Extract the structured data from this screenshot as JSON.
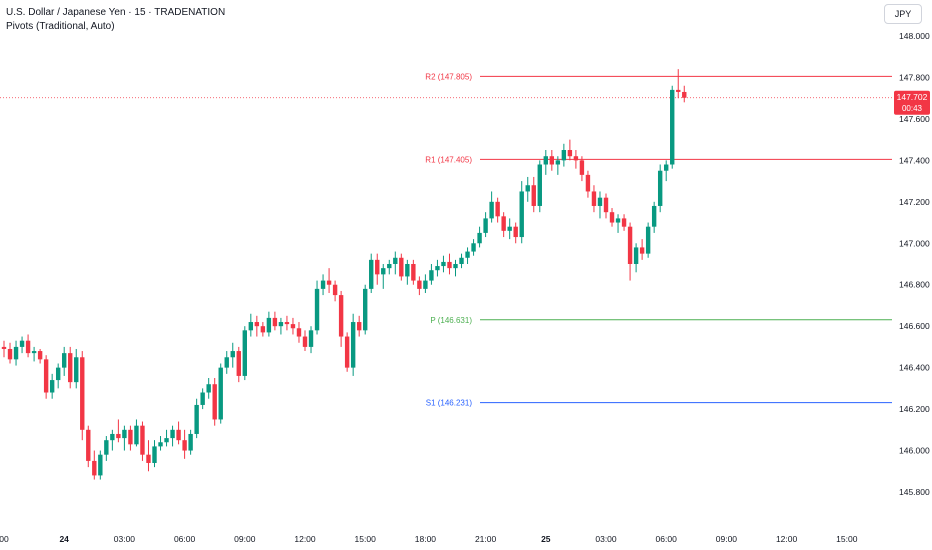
{
  "header": {
    "symbol_line": "U.S. Dollar / Japanese Yen · 15 · TRADENATION",
    "indicator_line": "Pivots (Traditional, Auto)",
    "currency_button": "JPY"
  },
  "price_badge": {
    "price": "147.702",
    "countdown": "00:43",
    "color": "#f23645"
  },
  "colors": {
    "up": "#089981",
    "down": "#f23645",
    "resistance": "#f23645",
    "pivot": "#4caf50",
    "support": "#2962ff"
  },
  "chart_data": {
    "type": "candlestick",
    "title": "U.S. Dollar / Japanese Yen · 15 · TRADENATION",
    "y_axis": {
      "min": 145.7,
      "max": 148.15,
      "ticks": [
        "148.000",
        "147.800",
        "147.600",
        "147.400",
        "147.200",
        "147.000",
        "146.800",
        "146.600",
        "146.400",
        "146.200",
        "146.000",
        "145.800"
      ]
    },
    "x_axis": {
      "ticks": [
        {
          "label": "00",
          "bold": false,
          "index": 0
        },
        {
          "label": "24",
          "bold": true,
          "index": 10
        },
        {
          "label": "03:00",
          "bold": false,
          "index": 20
        },
        {
          "label": "06:00",
          "bold": false,
          "index": 30
        },
        {
          "label": "09:00",
          "bold": false,
          "index": 40
        },
        {
          "label": "12:00",
          "bold": false,
          "index": 50
        },
        {
          "label": "15:00",
          "bold": false,
          "index": 60
        },
        {
          "label": "18:00",
          "bold": false,
          "index": 70
        },
        {
          "label": "21:00",
          "bold": false,
          "index": 80
        },
        {
          "label": "25",
          "bold": true,
          "index": 90
        },
        {
          "label": "03:00",
          "bold": false,
          "index": 100
        },
        {
          "label": "06:00",
          "bold": false,
          "index": 110
        },
        {
          "label": "09:00",
          "bold": false,
          "index": 120
        },
        {
          "label": "12:00",
          "bold": false,
          "index": 130
        },
        {
          "label": "15:00",
          "bold": false,
          "index": 140
        }
      ]
    },
    "pivot_levels": [
      {
        "label": "R2 (147.805)",
        "value": 147.805,
        "kind": "resistance"
      },
      {
        "label": "R1 (147.405)",
        "value": 147.405,
        "kind": "resistance"
      },
      {
        "label": "P (146.631)",
        "value": 146.631,
        "kind": "pivot"
      },
      {
        "label": "S1 (146.231)",
        "value": 146.231,
        "kind": "support"
      }
    ],
    "current_price": 147.702,
    "ohlc": [
      [
        146.5,
        146.53,
        146.45,
        146.49
      ],
      [
        146.49,
        146.52,
        146.42,
        146.44
      ],
      [
        146.44,
        146.53,
        146.41,
        146.5
      ],
      [
        146.5,
        146.55,
        146.47,
        146.53
      ],
      [
        146.53,
        146.56,
        146.45,
        146.47
      ],
      [
        146.47,
        146.5,
        146.43,
        146.48
      ],
      [
        146.48,
        146.49,
        146.42,
        146.44
      ],
      [
        146.44,
        146.46,
        146.25,
        146.28
      ],
      [
        146.28,
        146.37,
        146.25,
        146.34
      ],
      [
        146.34,
        146.42,
        146.3,
        146.4
      ],
      [
        146.4,
        146.5,
        146.36,
        146.47
      ],
      [
        146.47,
        146.5,
        146.3,
        146.33
      ],
      [
        146.33,
        146.49,
        146.3,
        146.45
      ],
      [
        146.45,
        146.48,
        146.05,
        146.1
      ],
      [
        146.1,
        146.12,
        145.92,
        145.95
      ],
      [
        145.95,
        146.0,
        145.86,
        145.88
      ],
      [
        145.88,
        146.0,
        145.86,
        145.98
      ],
      [
        145.98,
        146.07,
        145.95,
        146.05
      ],
      [
        146.05,
        146.1,
        146.0,
        146.08
      ],
      [
        146.08,
        146.15,
        146.04,
        146.06
      ],
      [
        146.06,
        146.12,
        146.0,
        146.1
      ],
      [
        146.1,
        146.12,
        146.0,
        146.03
      ],
      [
        146.03,
        146.15,
        146.02,
        146.12
      ],
      [
        146.12,
        146.14,
        145.95,
        145.98
      ],
      [
        145.98,
        146.05,
        145.9,
        145.94
      ],
      [
        145.94,
        146.05,
        145.92,
        146.02
      ],
      [
        146.02,
        146.07,
        146.0,
        146.04
      ],
      [
        146.04,
        146.1,
        146.02,
        146.06
      ],
      [
        146.06,
        146.12,
        146.02,
        146.1
      ],
      [
        146.1,
        146.14,
        146.03,
        146.05
      ],
      [
        146.05,
        146.1,
        145.96,
        146.0
      ],
      [
        146.0,
        146.1,
        145.98,
        146.08
      ],
      [
        146.08,
        146.25,
        146.06,
        146.22
      ],
      [
        146.22,
        146.3,
        146.2,
        146.28
      ],
      [
        146.28,
        146.35,
        146.25,
        146.32
      ],
      [
        146.32,
        146.35,
        146.12,
        146.15
      ],
      [
        146.15,
        146.42,
        146.13,
        146.4
      ],
      [
        146.4,
        146.48,
        146.37,
        146.45
      ],
      [
        146.45,
        146.52,
        146.4,
        146.48
      ],
      [
        146.48,
        146.5,
        146.33,
        146.36
      ],
      [
        146.36,
        146.6,
        146.34,
        146.58
      ],
      [
        146.58,
        146.66,
        146.55,
        146.62
      ],
      [
        146.62,
        146.65,
        146.55,
        146.6
      ],
      [
        146.6,
        146.62,
        146.55,
        146.57
      ],
      [
        146.57,
        146.67,
        146.55,
        146.64
      ],
      [
        146.64,
        146.67,
        146.58,
        146.6
      ],
      [
        146.6,
        146.64,
        146.56,
        146.62
      ],
      [
        146.62,
        146.65,
        146.58,
        146.61
      ],
      [
        146.61,
        146.64,
        146.56,
        146.59
      ],
      [
        146.59,
        146.62,
        146.52,
        146.55
      ],
      [
        146.55,
        146.58,
        146.48,
        146.5
      ],
      [
        146.5,
        146.6,
        146.47,
        146.58
      ],
      [
        146.58,
        146.82,
        146.56,
        146.78
      ],
      [
        146.78,
        146.85,
        146.75,
        146.82
      ],
      [
        146.82,
        146.88,
        146.76,
        146.8
      ],
      [
        146.8,
        146.82,
        146.72,
        146.75
      ],
      [
        146.75,
        146.77,
        146.5,
        146.55
      ],
      [
        146.55,
        146.57,
        146.38,
        146.4
      ],
      [
        146.4,
        146.66,
        146.36,
        146.62
      ],
      [
        146.62,
        146.65,
        146.55,
        146.58
      ],
      [
        146.58,
        146.8,
        146.56,
        146.78
      ],
      [
        146.78,
        146.95,
        146.76,
        146.92
      ],
      [
        146.92,
        146.95,
        146.8,
        146.85
      ],
      [
        146.85,
        146.9,
        146.78,
        146.88
      ],
      [
        146.88,
        146.92,
        146.85,
        146.9
      ],
      [
        146.9,
        146.96,
        146.85,
        146.93
      ],
      [
        146.93,
        146.95,
        146.82,
        146.84
      ],
      [
        146.84,
        146.92,
        146.8,
        146.9
      ],
      [
        146.9,
        146.92,
        146.8,
        146.82
      ],
      [
        146.82,
        146.84,
        146.75,
        146.78
      ],
      [
        146.78,
        146.85,
        146.76,
        146.82
      ],
      [
        146.82,
        146.9,
        146.8,
        146.87
      ],
      [
        146.87,
        146.92,
        146.84,
        146.89
      ],
      [
        146.89,
        146.94,
        146.86,
        146.91
      ],
      [
        146.91,
        146.95,
        146.85,
        146.88
      ],
      [
        146.88,
        146.92,
        146.84,
        146.9
      ],
      [
        146.9,
        146.95,
        146.88,
        146.93
      ],
      [
        146.93,
        146.98,
        146.9,
        146.96
      ],
      [
        146.96,
        147.02,
        146.94,
        147.0
      ],
      [
        147.0,
        147.08,
        146.98,
        147.05
      ],
      [
        147.05,
        147.15,
        147.03,
        147.12
      ],
      [
        147.12,
        147.25,
        147.1,
        147.2
      ],
      [
        147.2,
        147.22,
        147.1,
        147.13
      ],
      [
        147.13,
        147.15,
        147.03,
        147.06
      ],
      [
        147.06,
        147.12,
        147.02,
        147.08
      ],
      [
        147.08,
        147.1,
        147.0,
        147.03
      ],
      [
        147.03,
        147.3,
        147.0,
        147.25
      ],
      [
        147.25,
        147.32,
        147.2,
        147.28
      ],
      [
        147.28,
        147.32,
        147.15,
        147.18
      ],
      [
        147.18,
        147.4,
        147.15,
        147.38
      ],
      [
        147.38,
        147.45,
        147.33,
        147.42
      ],
      [
        147.42,
        147.45,
        147.35,
        147.38
      ],
      [
        147.38,
        147.42,
        147.33,
        147.4
      ],
      [
        147.4,
        147.48,
        147.37,
        147.45
      ],
      [
        147.45,
        147.5,
        147.4,
        147.42
      ],
      [
        147.42,
        147.45,
        147.36,
        147.4
      ],
      [
        147.4,
        147.42,
        147.3,
        147.33
      ],
      [
        147.33,
        147.35,
        147.22,
        147.25
      ],
      [
        147.25,
        147.28,
        147.15,
        147.18
      ],
      [
        147.18,
        147.25,
        147.12,
        147.22
      ],
      [
        147.22,
        147.24,
        147.12,
        147.15
      ],
      [
        147.15,
        147.17,
        147.08,
        147.1
      ],
      [
        147.1,
        147.14,
        147.05,
        147.12
      ],
      [
        147.12,
        147.14,
        147.06,
        147.08
      ],
      [
        147.08,
        147.1,
        146.82,
        146.9
      ],
      [
        146.9,
        147.0,
        146.86,
        146.98
      ],
      [
        146.98,
        147.02,
        146.92,
        146.95
      ],
      [
        146.95,
        147.1,
        146.93,
        147.08
      ],
      [
        147.08,
        147.2,
        147.05,
        147.18
      ],
      [
        147.18,
        147.38,
        147.15,
        147.35
      ],
      [
        147.35,
        147.4,
        147.3,
        147.38
      ],
      [
        147.38,
        147.76,
        147.36,
        147.74
      ],
      [
        147.74,
        147.84,
        147.7,
        147.73
      ],
      [
        147.73,
        147.76,
        147.68,
        147.702
      ]
    ]
  }
}
